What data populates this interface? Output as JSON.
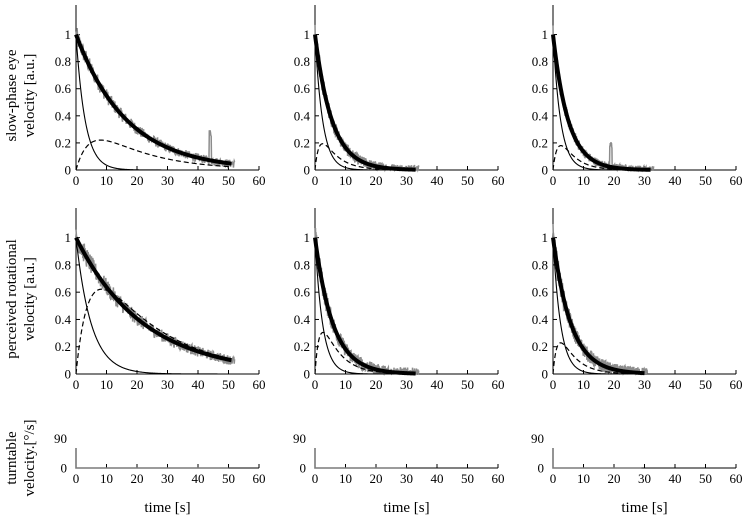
{
  "chart_data": [
    {
      "type": "line",
      "row": "eye",
      "col": 1,
      "xlim": [
        0,
        60
      ],
      "ylim": [
        0,
        1.1
      ],
      "xticks": [
        0,
        10,
        20,
        30,
        40,
        50,
        60
      ],
      "yticks": [
        0,
        0.2,
        0.4,
        0.6,
        0.8,
        1
      ],
      "ylabel": "slow-phase eye velocity [a.u.]",
      "xlabel": "",
      "x_end": 51,
      "fit": {
        "tau_fast": 3.0,
        "k_slow": 0.06,
        "tau_rise": 6.0,
        "tau_decay": 17.0,
        "amp": 0.3
      },
      "noise": {
        "amp": 0.045,
        "spike_x": 44,
        "spike_h": 0.2
      }
    },
    {
      "type": "line",
      "row": "eye",
      "col": 2,
      "xlim": [
        0,
        60
      ],
      "ylim": [
        0,
        1.1
      ],
      "xticks": [
        0,
        10,
        20,
        30,
        40,
        50,
        60
      ],
      "yticks": [
        0,
        0.2,
        0.4,
        0.6,
        0.8,
        1
      ],
      "ylabel": "",
      "xlabel": "",
      "x_end": 33,
      "fit": {
        "tau_fast": 2.5,
        "k_slow": 0.18,
        "tau_rise": 2.0,
        "tau_decay": 5.0,
        "amp": 0.28
      },
      "noise": {
        "amp": 0.06,
        "spike_x": 0,
        "spike_h": 0
      }
    },
    {
      "type": "line",
      "row": "eye",
      "col": 3,
      "xlim": [
        0,
        60
      ],
      "ylim": [
        0,
        1.1
      ],
      "xticks": [
        0,
        10,
        20,
        30,
        40,
        50,
        60
      ],
      "yticks": [
        0,
        0.2,
        0.4,
        0.6,
        0.8,
        1
      ],
      "ylabel": "",
      "xlabel": "",
      "x_end": 32,
      "fit": {
        "tau_fast": 2.5,
        "k_slow": 0.2,
        "tau_rise": 2.5,
        "tau_decay": 4.5,
        "amp": 0.31
      },
      "noise": {
        "amp": 0.05,
        "spike_x": 19,
        "spike_h": 0.16
      }
    },
    {
      "type": "line",
      "row": "percept",
      "col": 1,
      "xlim": [
        0,
        60
      ],
      "ylim": [
        0,
        1.1
      ],
      "xticks": [
        0,
        10,
        20,
        30,
        40,
        50,
        60
      ],
      "yticks": [
        0,
        0.2,
        0.4,
        0.6,
        0.8,
        1
      ],
      "ylabel": "perceived rotational velocity [a.u.]",
      "xlabel": "",
      "x_end": 51,
      "fit": {
        "tau_fast": 5.0,
        "k_slow": 0.045,
        "tau_rise": 5.0,
        "tau_decay": 22.0,
        "amp": 0.7
      },
      "noise": {
        "amp": 0.05,
        "spike_x": 0,
        "spike_h": 0
      }
    },
    {
      "type": "line",
      "row": "percept",
      "col": 2,
      "xlim": [
        0,
        60
      ],
      "ylim": [
        0,
        1.1
      ],
      "xticks": [
        0,
        10,
        20,
        30,
        40,
        50,
        60
      ],
      "yticks": [
        0,
        0.2,
        0.4,
        0.6,
        0.8,
        1
      ],
      "ylabel": "",
      "xlabel": "",
      "x_end": 33,
      "fit": {
        "tau_fast": 2.5,
        "k_slow": 0.17,
        "tau_rise": 2.0,
        "tau_decay": 5.5,
        "amp": 0.42
      },
      "noise": {
        "amp": 0.07,
        "spike_x": 0,
        "spike_h": 0
      }
    },
    {
      "type": "line",
      "row": "percept",
      "col": 3,
      "xlim": [
        0,
        60
      ],
      "ylim": [
        0,
        1.1
      ],
      "xticks": [
        0,
        10,
        20,
        30,
        40,
        50,
        60
      ],
      "yticks": [
        0,
        0.2,
        0.4,
        0.6,
        0.8,
        1
      ],
      "ylabel": "",
      "xlabel": "",
      "x_end": 30,
      "fit": {
        "tau_fast": 2.5,
        "k_slow": 0.17,
        "tau_rise": 2.0,
        "tau_decay": 5.0,
        "amp": 0.33
      },
      "noise": {
        "amp": 0.07,
        "spike_x": 0,
        "spike_h": 0
      }
    },
    {
      "type": "line",
      "row": "turntable",
      "col": 1,
      "xlim": [
        0,
        60
      ],
      "ylim": [
        0,
        90
      ],
      "xticks": [
        0,
        10,
        20,
        30,
        40,
        50,
        60
      ],
      "yticks": [
        0,
        90
      ],
      "ylabel": "turntable velocity.[°/s]",
      "xlabel": "time [s]",
      "series": [
        {
          "x": [
            0,
            0,
            50
          ],
          "y": [
            90,
            0,
            0
          ]
        }
      ]
    },
    {
      "type": "line",
      "row": "turntable",
      "col": 2,
      "xlim": [
        0,
        60
      ],
      "ylim": [
        0,
        90
      ],
      "xticks": [
        0,
        10,
        20,
        30,
        40,
        50,
        60
      ],
      "yticks": [
        0,
        90
      ],
      "ylabel": "",
      "xlabel": "time [s]",
      "series": [
        {
          "x": [
            0,
            0,
            30
          ],
          "y": [
            90,
            0,
            0
          ]
        }
      ]
    },
    {
      "type": "line",
      "row": "turntable",
      "col": 3,
      "xlim": [
        0,
        60
      ],
      "ylim": [
        0,
        90
      ],
      "xticks": [
        0,
        10,
        20,
        30,
        40,
        50,
        60
      ],
      "yticks": [
        0,
        90
      ],
      "ylabel": "",
      "xlabel": "time [s]",
      "series": [
        {
          "x": [
            0,
            0,
            29
          ],
          "y": [
            90,
            0,
            0
          ]
        }
      ]
    }
  ],
  "colors": {
    "data_trace": "#8c8c8c",
    "fit": "#000000",
    "component": "#000000",
    "turntable": "#7a7a7a"
  }
}
